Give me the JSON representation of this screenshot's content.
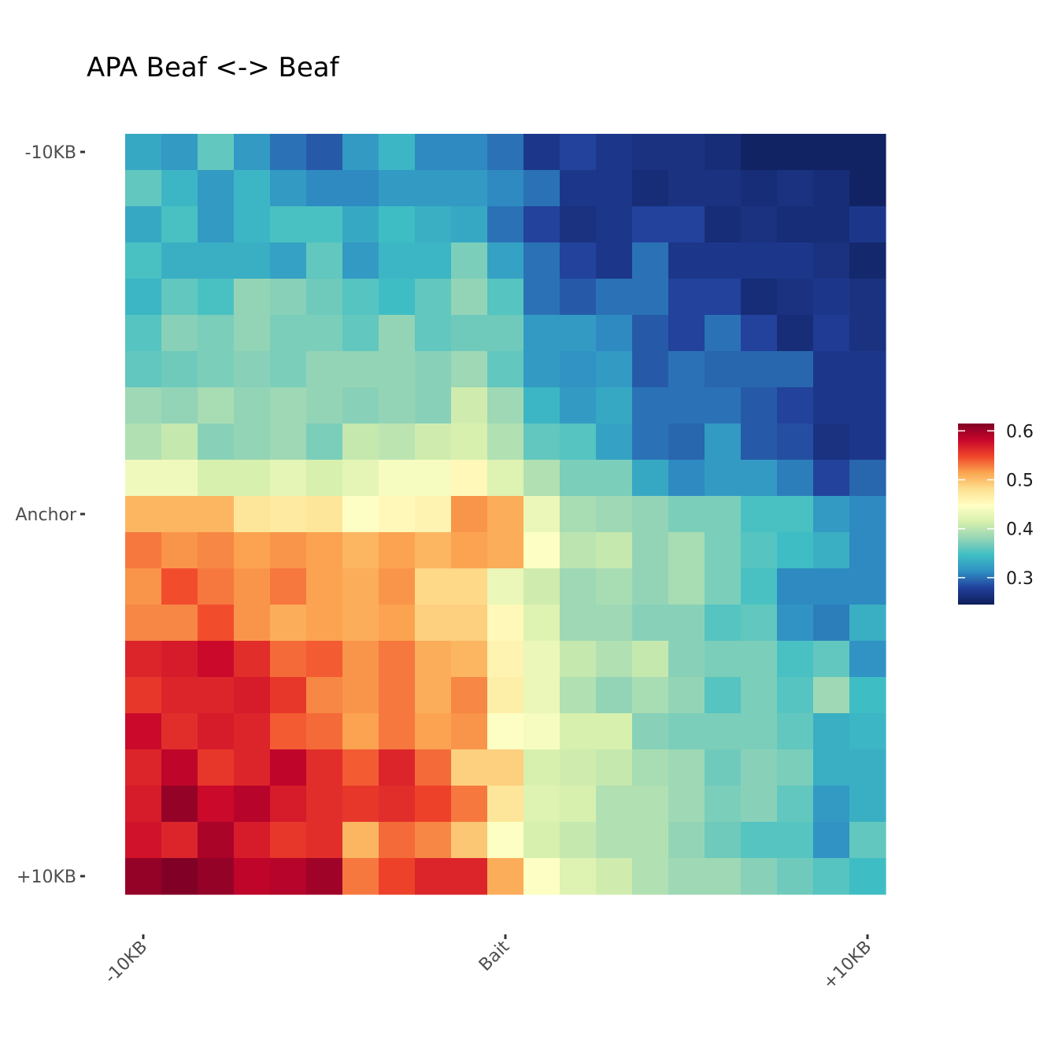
{
  "chart_data": {
    "type": "heatmap",
    "title": "APA Beaf <-> Beaf",
    "xlabel": "",
    "ylabel": "",
    "x_tick_labels": [
      "-10KB",
      "Bait",
      "+10KB"
    ],
    "x_tick_positions": [
      0,
      10,
      20
    ],
    "y_tick_labels": [
      "-10KB",
      "Anchor",
      "+10KB"
    ],
    "y_tick_positions": [
      0,
      10,
      20
    ],
    "color_scale": {
      "name": "Spectral (reversed)",
      "range": [
        0.245,
        0.615
      ],
      "stops": [
        "#0f1e5a",
        "#213f9a",
        "#2f8fc4",
        "#3fbec4",
        "#93d4b6",
        "#d5efad",
        "#ffffc4",
        "#fde191",
        "#fba651",
        "#f0452a",
        "#c8062b",
        "#800026"
      ],
      "legend_ticks": [
        0.3,
        0.4,
        0.5,
        0.6
      ],
      "legend_tick_labels": [
        "0.3",
        "0.4",
        "0.5",
        "0.6"
      ],
      "legend_placement": "right"
    },
    "grid": false,
    "rows": 21,
    "cols": 21,
    "values": [
      [
        0.33,
        0.32,
        0.36,
        0.32,
        0.3,
        0.29,
        0.32,
        0.34,
        0.31,
        0.31,
        0.3,
        0.27,
        0.28,
        0.27,
        0.265,
        0.265,
        0.26,
        0.25,
        0.25,
        0.25,
        0.25
      ],
      [
        0.36,
        0.34,
        0.32,
        0.34,
        0.32,
        0.31,
        0.31,
        0.32,
        0.32,
        0.32,
        0.31,
        0.3,
        0.27,
        0.27,
        0.26,
        0.265,
        0.265,
        0.26,
        0.265,
        0.26,
        0.25
      ],
      [
        0.33,
        0.35,
        0.32,
        0.34,
        0.35,
        0.35,
        0.33,
        0.345,
        0.335,
        0.33,
        0.3,
        0.28,
        0.265,
        0.27,
        0.28,
        0.28,
        0.26,
        0.265,
        0.26,
        0.26,
        0.27
      ],
      [
        0.35,
        0.335,
        0.335,
        0.335,
        0.325,
        0.36,
        0.32,
        0.34,
        0.34,
        0.37,
        0.325,
        0.3,
        0.28,
        0.27,
        0.3,
        0.27,
        0.27,
        0.27,
        0.27,
        0.265,
        0.255
      ],
      [
        0.34,
        0.36,
        0.35,
        0.38,
        0.375,
        0.365,
        0.355,
        0.345,
        0.36,
        0.38,
        0.355,
        0.3,
        0.29,
        0.3,
        0.3,
        0.28,
        0.28,
        0.26,
        0.265,
        0.27,
        0.265
      ],
      [
        0.355,
        0.375,
        0.37,
        0.38,
        0.37,
        0.37,
        0.36,
        0.38,
        0.36,
        0.365,
        0.365,
        0.32,
        0.32,
        0.31,
        0.29,
        0.28,
        0.3,
        0.28,
        0.26,
        0.275,
        0.265
      ],
      [
        0.36,
        0.365,
        0.37,
        0.375,
        0.37,
        0.38,
        0.38,
        0.38,
        0.375,
        0.385,
        0.36,
        0.32,
        0.315,
        0.32,
        0.29,
        0.3,
        0.295,
        0.295,
        0.295,
        0.27,
        0.27
      ],
      [
        0.385,
        0.38,
        0.39,
        0.38,
        0.385,
        0.38,
        0.375,
        0.38,
        0.375,
        0.41,
        0.385,
        0.34,
        0.32,
        0.33,
        0.3,
        0.3,
        0.3,
        0.29,
        0.28,
        0.27,
        0.27
      ],
      [
        0.395,
        0.405,
        0.375,
        0.38,
        0.385,
        0.37,
        0.405,
        0.4,
        0.41,
        0.415,
        0.395,
        0.36,
        0.355,
        0.325,
        0.3,
        0.295,
        0.32,
        0.29,
        0.285,
        0.265,
        0.27
      ],
      [
        0.435,
        0.435,
        0.415,
        0.415,
        0.425,
        0.415,
        0.425,
        0.44,
        0.44,
        0.455,
        0.42,
        0.395,
        0.37,
        0.37,
        0.33,
        0.31,
        0.32,
        0.32,
        0.305,
        0.28,
        0.295
      ],
      [
        0.505,
        0.505,
        0.505,
        0.475,
        0.47,
        0.475,
        0.445,
        0.455,
        0.46,
        0.52,
        0.51,
        0.43,
        0.39,
        0.385,
        0.38,
        0.37,
        0.37,
        0.35,
        0.35,
        0.32,
        0.31
      ],
      [
        0.53,
        0.52,
        0.525,
        0.515,
        0.52,
        0.515,
        0.505,
        0.515,
        0.505,
        0.515,
        0.51,
        0.445,
        0.4,
        0.405,
        0.38,
        0.39,
        0.37,
        0.355,
        0.345,
        0.335,
        0.31
      ],
      [
        0.52,
        0.545,
        0.53,
        0.52,
        0.53,
        0.515,
        0.51,
        0.52,
        0.485,
        0.485,
        0.43,
        0.41,
        0.385,
        0.39,
        0.38,
        0.39,
        0.37,
        0.35,
        0.31,
        0.31,
        0.31
      ],
      [
        0.525,
        0.525,
        0.545,
        0.52,
        0.51,
        0.515,
        0.51,
        0.515,
        0.49,
        0.49,
        0.455,
        0.42,
        0.385,
        0.385,
        0.375,
        0.375,
        0.355,
        0.36,
        0.315,
        0.305,
        0.335
      ],
      [
        0.565,
        0.57,
        0.58,
        0.56,
        0.535,
        0.54,
        0.52,
        0.53,
        0.51,
        0.505,
        0.46,
        0.43,
        0.405,
        0.395,
        0.405,
        0.375,
        0.37,
        0.37,
        0.35,
        0.36,
        0.315
      ],
      [
        0.555,
        0.565,
        0.565,
        0.57,
        0.555,
        0.525,
        0.52,
        0.53,
        0.51,
        0.525,
        0.465,
        0.43,
        0.395,
        0.38,
        0.39,
        0.38,
        0.355,
        0.37,
        0.355,
        0.385,
        0.345
      ],
      [
        0.58,
        0.56,
        0.57,
        0.565,
        0.54,
        0.535,
        0.515,
        0.53,
        0.515,
        0.52,
        0.445,
        0.44,
        0.415,
        0.415,
        0.375,
        0.37,
        0.37,
        0.37,
        0.36,
        0.335,
        0.34
      ],
      [
        0.565,
        0.585,
        0.555,
        0.565,
        0.585,
        0.56,
        0.54,
        0.565,
        0.535,
        0.49,
        0.49,
        0.415,
        0.41,
        0.405,
        0.39,
        0.385,
        0.365,
        0.375,
        0.37,
        0.335,
        0.335
      ],
      [
        0.57,
        0.605,
        0.58,
        0.59,
        0.57,
        0.56,
        0.555,
        0.56,
        0.55,
        0.53,
        0.475,
        0.42,
        0.415,
        0.395,
        0.395,
        0.385,
        0.37,
        0.375,
        0.36,
        0.32,
        0.335
      ],
      [
        0.575,
        0.565,
        0.595,
        0.57,
        0.555,
        0.56,
        0.505,
        0.535,
        0.525,
        0.495,
        0.445,
        0.415,
        0.405,
        0.395,
        0.395,
        0.38,
        0.365,
        0.355,
        0.355,
        0.315,
        0.36
      ],
      [
        0.605,
        0.615,
        0.605,
        0.585,
        0.59,
        0.6,
        0.53,
        0.55,
        0.565,
        0.565,
        0.51,
        0.445,
        0.42,
        0.41,
        0.395,
        0.385,
        0.385,
        0.375,
        0.365,
        0.355,
        0.345
      ]
    ]
  }
}
